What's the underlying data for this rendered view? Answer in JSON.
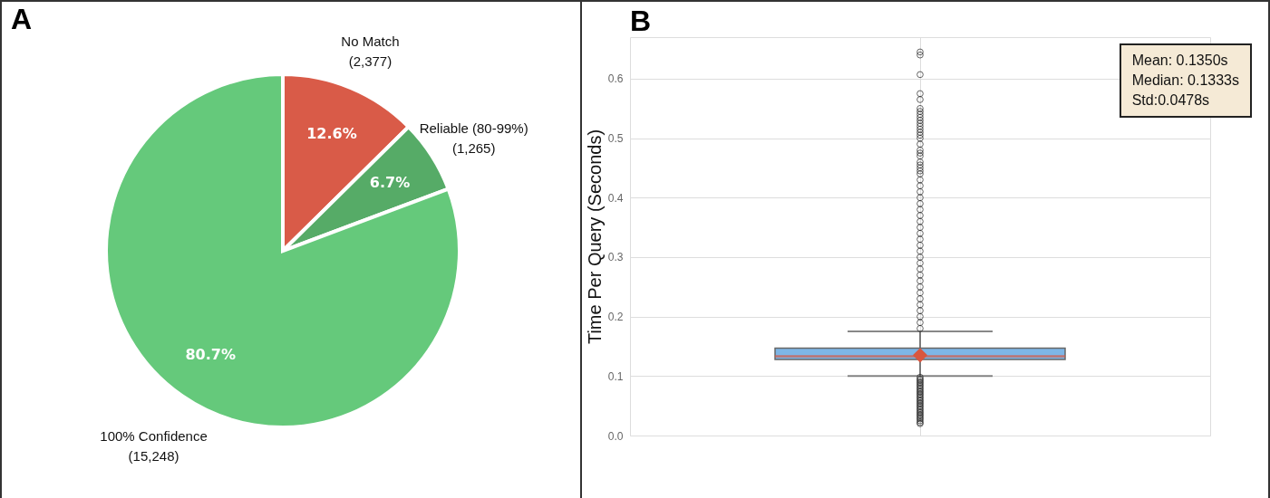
{
  "chart_data": [
    {
      "type": "pie",
      "title": "A",
      "categories": [
        "No Match (2,377)",
        "Reliable (80-99%) (1,265)",
        "100% Confidence (15,248)"
      ],
      "values": [
        12.6,
        6.7,
        80.7
      ],
      "colors": [
        "#d95b48",
        "#56ab67",
        "#65c97b"
      ],
      "value_labels": [
        "12.6%",
        "6.7%",
        "80.7%"
      ]
    },
    {
      "type": "box",
      "title": "B",
      "ylabel": "Time Per Query (Seconds)",
      "categories": [
        null
      ],
      "ylim": [
        0,
        0.67
      ],
      "yticks": [
        {
          "value": 0,
          "label": "0.0"
        },
        0.1,
        0.2,
        0.3,
        0.4,
        0.5,
        0.6
      ],
      "grid": true,
      "series": [
        {
          "color": "#7eb6e6",
          "boxes": [
            {
              "low": 0.1,
              "q1": 0.128,
              "median": 0.1333,
              "q3": 0.147,
              "high": 0.175,
              "mean": 0.135,
              "outliers": [
                0.02,
                0.022,
                0.025,
                0.028,
                0.03,
                0.033,
                0.035,
                0.038,
                0.04,
                0.043,
                0.045,
                0.048,
                0.05,
                0.053,
                0.055,
                0.058,
                0.06,
                0.063,
                0.065,
                0.068,
                0.07,
                0.073,
                0.075,
                0.078,
                0.08,
                0.083,
                0.085,
                0.088,
                0.09,
                0.093,
                0.095,
                0.098,
                0.18,
                0.19,
                0.2,
                0.21,
                0.22,
                0.23,
                0.24,
                0.25,
                0.26,
                0.27,
                0.28,
                0.29,
                0.3,
                0.31,
                0.32,
                0.33,
                0.34,
                0.35,
                0.36,
                0.37,
                0.38,
                0.39,
                0.4,
                0.41,
                0.42,
                0.43,
                0.44,
                0.445,
                0.45,
                0.455,
                0.46,
                0.47,
                0.475,
                0.48,
                0.49,
                0.5,
                0.505,
                0.51,
                0.515,
                0.52,
                0.525,
                0.53,
                0.535,
                0.54,
                0.545,
                0.55,
                0.565,
                0.575,
                0.607,
                0.64,
                0.645
              ]
            }
          ]
        }
      ],
      "annotations": [
        "Mean: 0.1350s",
        "Median: 0.1333s",
        "Std:0.0478s"
      ]
    }
  ]
}
